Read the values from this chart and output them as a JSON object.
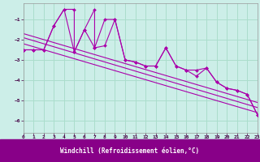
{
  "xlabel": "Windchill (Refroidissement éolien,°C)",
  "bg_color": "#cceee8",
  "grid_color": "#aaddcc",
  "line_color": "#aa00aa",
  "xlim": [
    0,
    23
  ],
  "ylim": [
    -6.6,
    -0.2
  ],
  "yticks": [
    -6,
    -5,
    -4,
    -3,
    -2,
    -1
  ],
  "xticks": [
    0,
    1,
    2,
    3,
    4,
    5,
    6,
    7,
    8,
    9,
    10,
    11,
    12,
    13,
    14,
    15,
    16,
    17,
    18,
    19,
    20,
    21,
    22,
    23
  ],
  "line1_x": [
    0,
    1,
    2,
    3,
    4,
    5,
    6,
    7,
    8,
    9,
    10,
    11,
    12,
    13,
    14,
    15,
    16,
    17,
    18,
    19,
    20,
    21,
    22,
    23
  ],
  "line1_y": [
    -2.5,
    -2.5,
    -2.5,
    -1.3,
    -0.5,
    -2.6,
    -1.5,
    -2.4,
    -2.3,
    -1.0,
    -3.0,
    -3.1,
    -3.3,
    -3.3,
    -2.4,
    -3.3,
    -3.5,
    -3.8,
    -3.4,
    -4.1,
    -4.4,
    -4.5,
    -4.7,
    -5.7
  ],
  "line2_x": [
    0,
    1,
    2,
    3,
    4,
    5,
    5,
    6,
    7,
    7,
    8,
    9,
    10,
    11,
    12,
    13,
    14,
    15,
    16,
    17,
    18,
    19,
    20,
    21,
    22,
    23
  ],
  "line2_y": [
    -2.5,
    -2.5,
    -2.5,
    -1.3,
    -0.5,
    -0.5,
    -2.6,
    -1.5,
    -0.5,
    -2.4,
    -1.0,
    -1.0,
    -3.0,
    -3.1,
    -3.3,
    -3.3,
    -2.4,
    -3.3,
    -3.5,
    -3.5,
    -3.4,
    -4.1,
    -4.4,
    -4.5,
    -4.7,
    -5.7
  ],
  "reg_lines": [
    {
      "x": [
        0,
        23
      ],
      "y": [
        -1.7,
        -5.1
      ]
    },
    {
      "x": [
        0,
        23
      ],
      "y": [
        -1.9,
        -5.35
      ]
    },
    {
      "x": [
        0,
        23
      ],
      "y": [
        -2.2,
        -5.6
      ]
    }
  ],
  "xlabel_bg": "#880088",
  "xlabel_color": "#ffffff",
  "tick_color": "#440044",
  "tick_fontsize": 4.5,
  "xlabel_fontsize": 5.5
}
